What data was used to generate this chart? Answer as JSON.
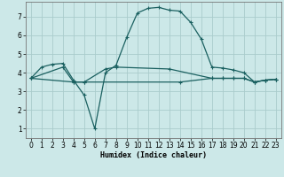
{
  "xlabel": "Humidex (Indice chaleur)",
  "bg_color": "#cce8e8",
  "grid_color": "#aacccc",
  "line_color": "#1a6060",
  "xlim": [
    -0.5,
    23.5
  ],
  "ylim": [
    0.5,
    7.8
  ],
  "yticks": [
    1,
    2,
    3,
    4,
    5,
    6,
    7
  ],
  "xticks": [
    0,
    1,
    2,
    3,
    4,
    5,
    6,
    7,
    8,
    9,
    10,
    11,
    12,
    13,
    14,
    15,
    16,
    17,
    18,
    19,
    20,
    21,
    22,
    23
  ],
  "line1_x": [
    0,
    1,
    2,
    3,
    4,
    5,
    6,
    7,
    8,
    9,
    10,
    11,
    12,
    13,
    14,
    15,
    16,
    17,
    18,
    19,
    20,
    21,
    22,
    23
  ],
  "line1_y": [
    3.7,
    4.3,
    4.45,
    4.5,
    3.6,
    2.8,
    1.0,
    4.0,
    4.4,
    5.9,
    7.2,
    7.45,
    7.5,
    7.35,
    7.3,
    6.7,
    5.8,
    4.3,
    4.25,
    4.15,
    4.0,
    3.5,
    3.6,
    3.65
  ],
  "line2_x": [
    0,
    3,
    4,
    5,
    7,
    8,
    13,
    17,
    18,
    19,
    20,
    21,
    22,
    23
  ],
  "line2_y": [
    3.7,
    4.3,
    3.5,
    3.5,
    4.2,
    4.3,
    4.2,
    3.7,
    3.7,
    3.7,
    3.7,
    3.5,
    3.6,
    3.65
  ],
  "line3_x": [
    0,
    4,
    5,
    14,
    17,
    18,
    19,
    20,
    21,
    22,
    23
  ],
  "line3_y": [
    3.7,
    3.5,
    3.5,
    3.5,
    3.7,
    3.7,
    3.7,
    3.7,
    3.5,
    3.6,
    3.65
  ]
}
